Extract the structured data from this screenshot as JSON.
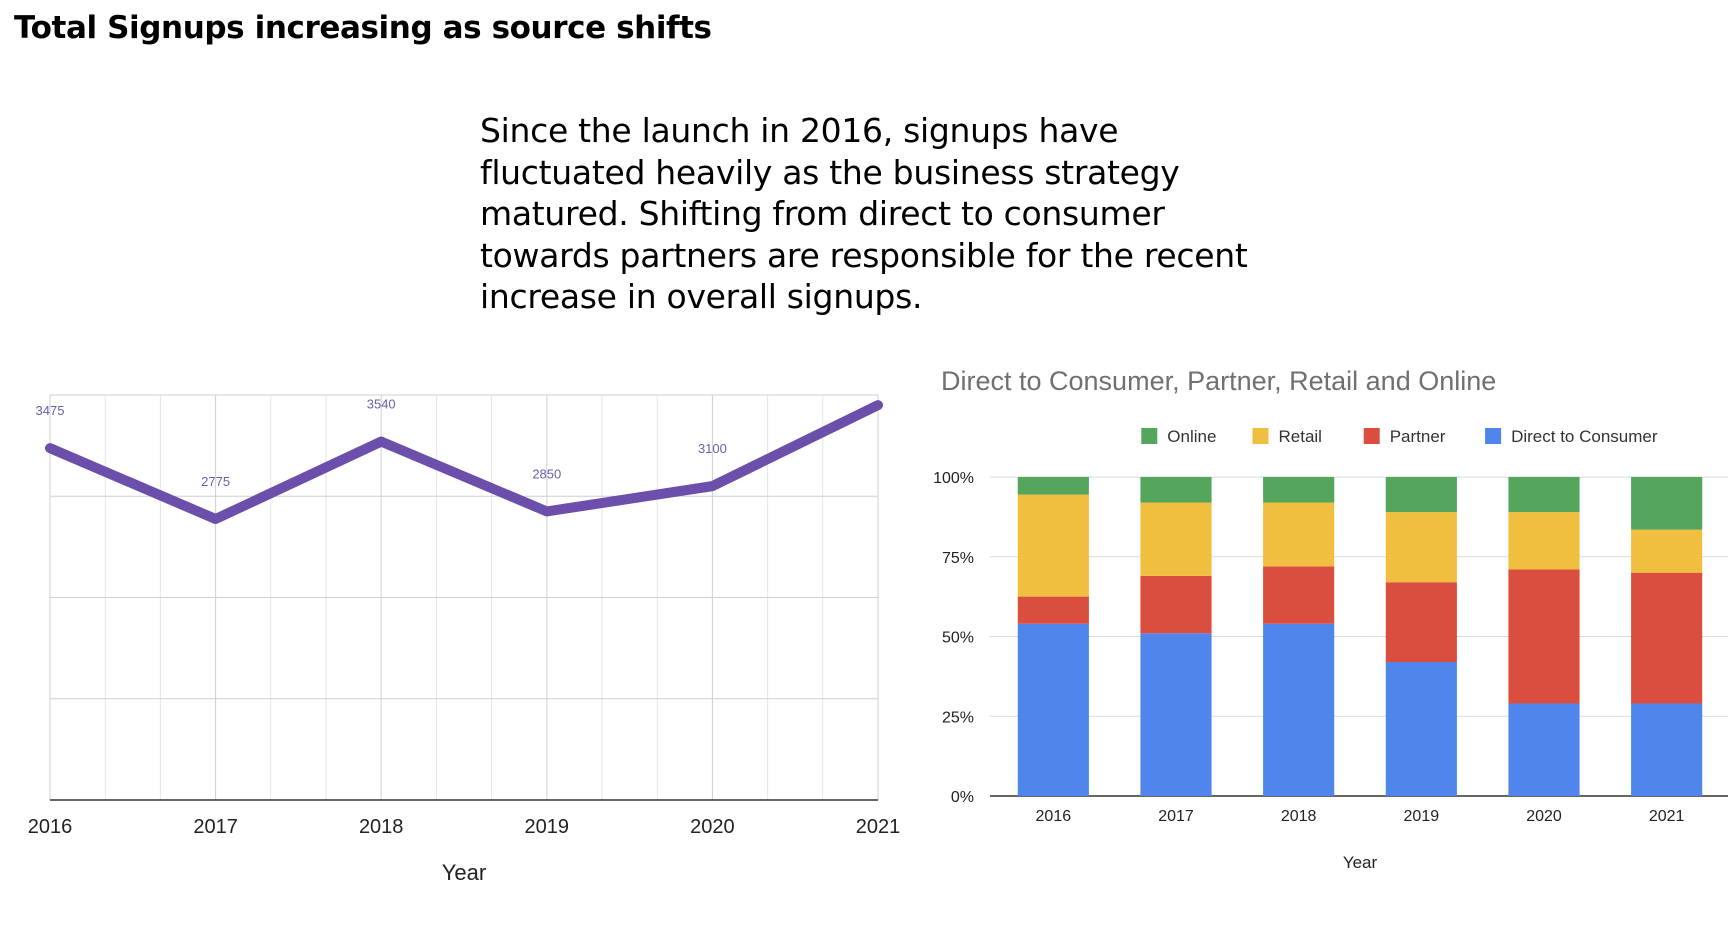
{
  "page": {
    "title": "Total Signups increasing as source shifts",
    "summary": "Since the launch in 2016, signups have fluctuated heavily as the business strategy matured. Shifting from direct to consumer towards partners are responsible for the recent increase in overall signups."
  },
  "chart_data": [
    {
      "type": "line",
      "title": "",
      "xlabel": "Year",
      "ylabel": "",
      "x": [
        "2016",
        "2017",
        "2018",
        "2019",
        "2020",
        "2021"
      ],
      "series": [
        {
          "name": "",
          "values": [
            3475,
            2775,
            3540,
            2850,
            3100,
            3900
          ]
        }
      ],
      "data_labels": [
        "3475",
        "2775",
        "3540",
        "2850",
        "3100",
        ""
      ],
      "ylim": [
        0,
        4000
      ],
      "grid": true,
      "color": "#6b4faa"
    },
    {
      "type": "bar",
      "stacked": "percent",
      "title": "Direct to Consumer, Partner, Retail and Online",
      "xlabel": "Year",
      "ylabel": "",
      "categories": [
        "2016",
        "2017",
        "2018",
        "2019",
        "2020",
        "2021"
      ],
      "y_ticks": [
        "0%",
        "25%",
        "50%",
        "75%",
        "100%"
      ],
      "legend_position": "top",
      "legend": [
        "Online",
        "Retail",
        "Partner",
        "Direct to Consumer"
      ],
      "series": [
        {
          "name": "Direct to Consumer",
          "color": "#5085ec",
          "values": [
            54,
            51,
            54,
            42,
            29,
            29
          ]
        },
        {
          "name": "Partner",
          "color": "#da4e3f",
          "values": [
            8.5,
            18,
            18,
            25,
            42,
            41
          ]
        },
        {
          "name": "Retail",
          "color": "#f0bf40",
          "values": [
            32,
            23,
            20,
            22,
            18,
            13.5
          ]
        },
        {
          "name": "Online",
          "color": "#56a55c",
          "values": [
            5.5,
            8,
            8,
            11,
            11,
            16.5
          ]
        }
      ],
      "ylim": [
        0,
        100
      ]
    }
  ]
}
